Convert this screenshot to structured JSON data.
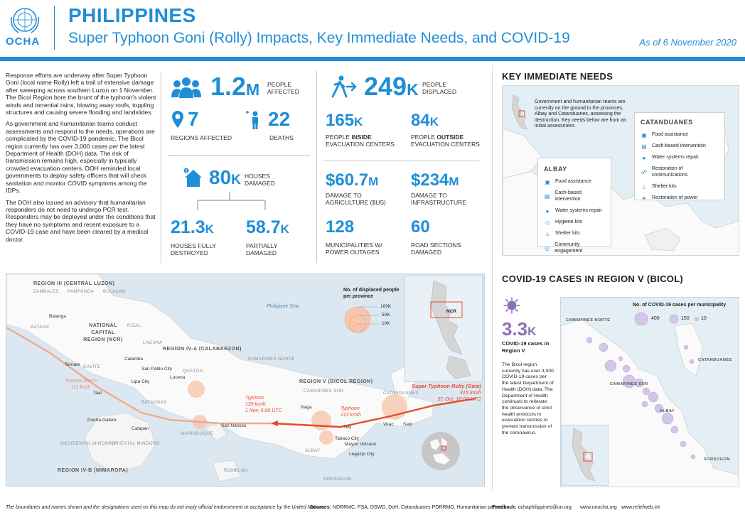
{
  "header": {
    "org": "OCHA",
    "title": "PHILIPPINES",
    "subtitle": "Super Typhoon Goni (Rolly) Impacts, Key Immediate Needs, and COVID-19",
    "date": "As of 6 November 2020"
  },
  "intro": {
    "p1": "Response efforts are underway after Super Typhoon Goni (local name Rolly) left a trail of extensive damage after sweeping across southern Luzon on 1 November. The Bicol Region bore the brunt of the typhoon's violent winds and torrential rains, blowing away roofs, toppling structures and causing severe flooding and landslides.",
    "p2": "As government and humanitarian teams conduct assessments and respond to the needs, operations are complicated by the COVID-19 pandemic. The Bicol region currently has over 3,000 cases per the latest Department of Health (DOH) data. The risk of transmission remains high, especially in typically crowded evacuation centers. DOH reminded local governments to deploy safety officers that will check sanitation and monitor COVID symptoms among the IDPs.",
    "p3": "The DOH also issued an advisory that humanitarian responders do not need to undergo PCR test. Responders may be deployed under the conditions that they have no symptoms and recent exposure to a COVID-19 case and have been cleared by a medical doctor."
  },
  "stats": {
    "affected": {
      "num": "1.2",
      "unit": "M",
      "label1": "PEOPLE",
      "label2": "AFFECTED"
    },
    "regions": {
      "num": "7",
      "label": "REGIONS AFFECTED"
    },
    "deaths": {
      "num": "22",
      "label": "DEATHS"
    },
    "houses": {
      "num": "80",
      "unit": "K",
      "label1": "HOUSES",
      "label2": "DAMAGED"
    },
    "destroyed": {
      "num": "21.3",
      "unit": "K",
      "label1": "HOUSES FULLY",
      "label2": "DESTROYED"
    },
    "partial": {
      "num": "58.7",
      "unit": "K",
      "label1": "PARTIALLY",
      "label2": "DAMAGED"
    },
    "displaced": {
      "num": "249",
      "unit": "K",
      "label1": "PEOPLE",
      "label2": "DISPLACED"
    },
    "inside": {
      "num": "165",
      "unit": "K",
      "label1a": "PEOPLE ",
      "label1b": "INSIDE",
      "label2": "EVACUATION CENTERS"
    },
    "outside": {
      "num": "84",
      "unit": "K",
      "label1a": "PEOPLE ",
      "label1b": "OUTSIDE",
      "label2": "EVACUATION CENTERS"
    },
    "agri": {
      "num": "$60.7",
      "unit": "M",
      "label1": "DAMAGE TO",
      "label2": "AGRICULTURE ($US)"
    },
    "infra": {
      "num": "$234",
      "unit": "M",
      "label1": "DAMAGE TO",
      "label2": "INFRASTRUCTURE"
    },
    "power": {
      "num": "128",
      "label1": "MUNICIPALITIES W/",
      "label2": "POWER OUTAGES"
    },
    "roads": {
      "num": "60",
      "label1": "ROAD SECTIONS",
      "label2": "DAMAGED"
    }
  },
  "needs": {
    "title": "KEY IMMEDIATE NEEDS",
    "note": "Government and humanitarian teams are currently on the ground in the provinces, Albay and Catanduanes, assessing the destruction.  Key needs below are from an initial assessment.",
    "albay": {
      "title": "ALBAY",
      "items": [
        "Food assistance",
        "Cash-based intervention",
        "Water systems repair",
        "Hygiene kits",
        "Shelter kits",
        "Community engagement"
      ]
    },
    "catanduanes": {
      "title": "CATANDUANES",
      "items": [
        "Food assistance",
        "Cash-based intervention",
        "Water systems repair",
        "Restoration of communications",
        "Shelter kits",
        "Restoration of power"
      ]
    }
  },
  "map": {
    "regions": {
      "r3": "REGION III (CENTRAL LUZON)",
      "ncr": "NATIONAL CAPITAL REGION (NCR)",
      "r4a": "REGION IV-A (CALABARZON)",
      "r5": "REGION V (BICOL REGION)",
      "r4b": "REGION IV-B (MIMAROPA)"
    },
    "provinces": [
      "ZAMBALES",
      "PAMPANGA",
      "BULACAN",
      "BATAAN",
      "RIZAL",
      "LAGUNA",
      "CAVITE",
      "QUEZON",
      "BATANGAS",
      "CAMARINES NORTE",
      "CAMARINES SUR",
      "CATANDUANES",
      "ALBAY",
      "SORSOGON",
      "MARINDUQUE",
      "OCCIDENTAL MINDORO",
      "ORIENTAL MINDORO",
      "ROMBLON"
    ],
    "towns": [
      "Balanga",
      "Ternate",
      "Calamba",
      "San Pablo City",
      "Lipa City",
      "Lucena",
      "Taal",
      "Puerta Galera",
      "Calapan",
      "San Narciso",
      "Naga",
      "Tiwi",
      "Tabaco City",
      "Mayon Volcano",
      "Legazpi City",
      "Virac",
      "Sato"
    ],
    "sea": "Philippine Sea",
    "legend_title": "No. of displaced people per province",
    "legend_values": [
      "100K",
      "50K",
      "10K"
    ],
    "inset_label": "NCR",
    "track": {
      "ts_label": "Tropical Storm",
      "ts_speed": "111 km/h",
      "ty1_label": "Typhoon",
      "ty1_speed": "139 km/h",
      "ty1_time": "1 Nov, 6:00 UTC",
      "ty2_label": "Typhoon",
      "ty2_speed": "213 km/h",
      "sty_label": "Super Typhoon Rolly (Goni)",
      "sty_speed": "315 km/h",
      "sty_time": "31 Oct, 18:00 UTC"
    }
  },
  "covid": {
    "title": "COVID-19 CASES IN REGION V (BICOL)",
    "num": "3.3",
    "unit": "K",
    "label": "COVID-19 cases in Region V",
    "text": "The Bicol region currently has over 3,000 COVID-19 cases per the latest Department of Health (DOH) data. The Department of Health continues to reiterate the observance of strict health protocols in evacuation centres to prevent transmission of the coronavirus.",
    "legend_title": "No. of COVID-19 cases per municipality",
    "legend_values": [
      "400",
      "150",
      "10"
    ],
    "provinces": [
      "CAMARINES NORTE",
      "CATANDUANES",
      "CAMARINES SUR",
      "ALBAY",
      "SORSOGON"
    ]
  },
  "footer": {
    "disclaimer": "The boundaries and names shown and the designations used on this map do not imply official endorsement or acceptance by the United Nations.",
    "sources_label": "Sources:",
    "sources": "NDRRMC, PSA, DSWD, DoH, Catanduanes PDRRMO, Humanitarian partners",
    "feedback_label": "Feedback:",
    "feedback": "ochaphilippines@un.org",
    "web1": "www.unocha.org",
    "web2": "www.reliefweb.int"
  },
  "colors": {
    "accent": "#1f8ed6",
    "covid": "#8e6fb8",
    "track": "#e84a2a",
    "circle": "#f4a988"
  }
}
